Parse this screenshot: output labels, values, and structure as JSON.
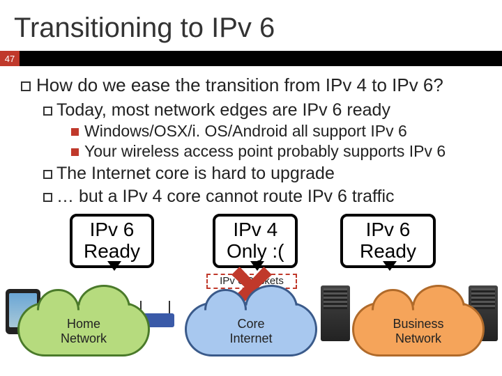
{
  "title": "Transitioning to IPv 6",
  "slide_number": "47",
  "q": "How do we ease the transition from IPv 4 to IPv 6?",
  "b1": "Today, most network edges are IPv 6 ready",
  "b1a": "Windows/OSX/i. OS/Android all support IPv 6",
  "b1b": "Your wireless access point probably supports IPv 6",
  "b2": "The Internet core is hard to upgrade",
  "b3": "… but a IPv 4 core cannot route IPv 6 traffic",
  "callout1": "IPv 6\nReady",
  "callout2": "IPv 4\nOnly :(",
  "callout3": "IPv 6\nReady",
  "dashed": "IPv 6 Packets",
  "cloud1_l1": "Home",
  "cloud1_l2": "Network",
  "cloud2_l1": "Core",
  "cloud2_l2": "Internet",
  "cloud3_l1": "Business",
  "cloud3_l2": "Network",
  "colors": {
    "accent": "#c0392b",
    "cloud_green": "#b6db7e",
    "cloud_blue": "#a8c8ef",
    "cloud_orange": "#f5a45a"
  }
}
